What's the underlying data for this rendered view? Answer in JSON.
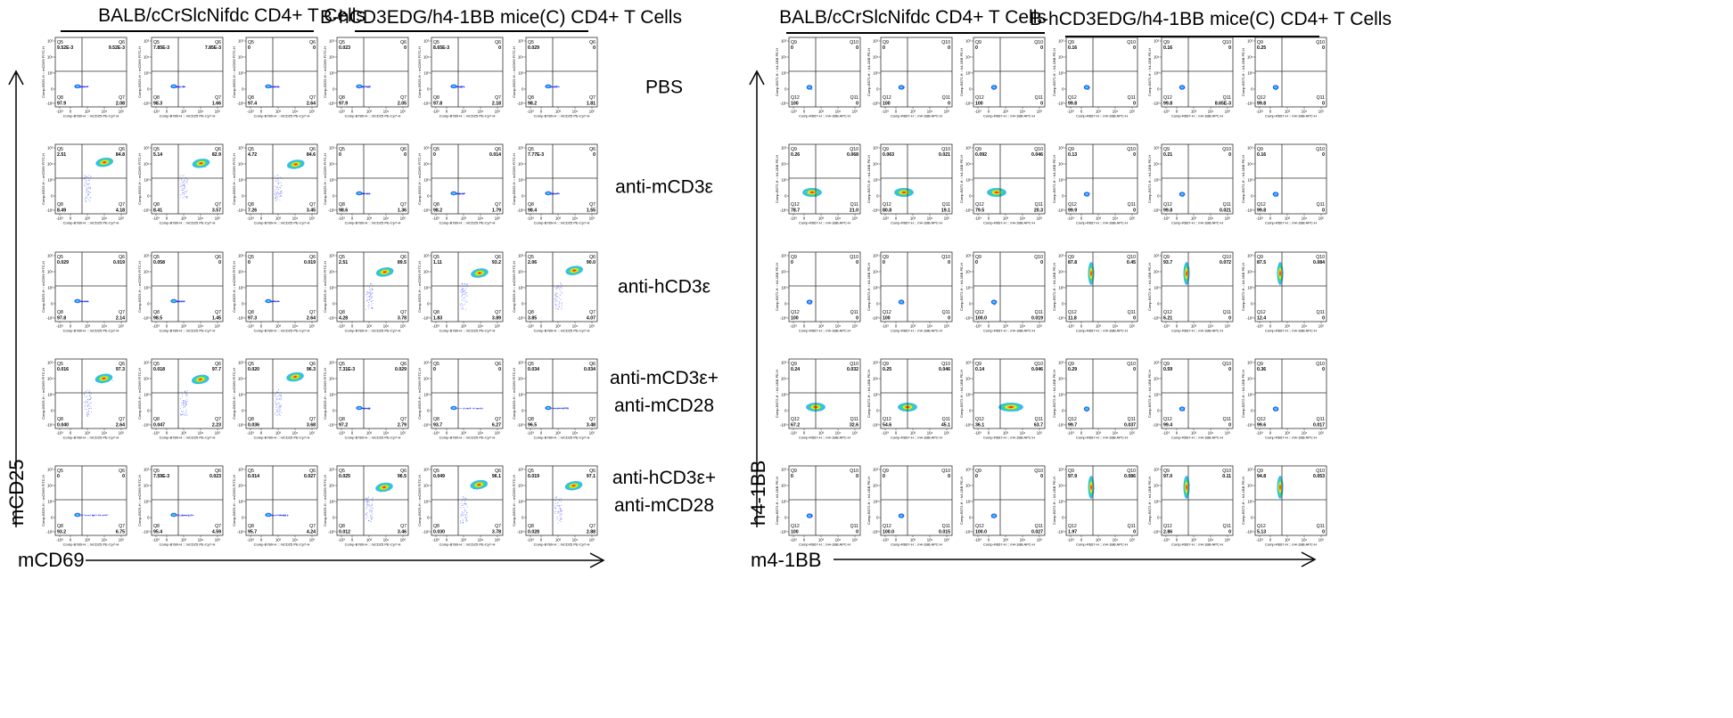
{
  "left_panel": {
    "group_headers": [
      "BALB/cCrSlcNifdc CD4+ T Cells",
      "B-hCD3EDG/h4-1BB mice(C) CD4+ T Cells"
    ],
    "y_axis_label": "mCD25",
    "x_axis_label": "mCD69",
    "plot_x_axis_text": "Comp-B780-H :: mCD25 PE-Cy7-H",
    "plot_y_axis_text": "Comp-B525-H :: mCD69 FITC-H",
    "x_tick_labels": [
      "-10³",
      "0",
      "10³",
      "10⁴",
      "10⁵"
    ],
    "y_tick_labels": [
      "10⁵",
      "10⁴",
      "10³",
      "0",
      "-10³"
    ],
    "gate_names": [
      "Q5",
      "Q6",
      "Q7",
      "Q8"
    ],
    "rows": [
      {
        "condition": "PBS",
        "plots": [
          {
            "tl": "9.52E-3",
            "tr": "9.52E-3",
            "br": "2.08",
            "bl": "97.9"
          },
          {
            "tl": "7.85E-3",
            "tr": "7.85E-3",
            "br": "1.66",
            "bl": "98.3"
          },
          {
            "tl": "0",
            "tr": "0",
            "br": "2.64",
            "bl": "97.4"
          },
          {
            "tl": "0.023",
            "tr": "0",
            "br": "2.05",
            "bl": "97.9"
          },
          {
            "tl": "8.65E-3",
            "tr": "0",
            "br": "2.18",
            "bl": "97.8"
          },
          {
            "tl": "0.029",
            "tr": "0",
            "br": "1.81",
            "bl": "98.2"
          }
        ]
      },
      {
        "condition": "anti-mCD3ε",
        "plots": [
          {
            "tl": "2.51",
            "tr": "84.8",
            "br": "4.18",
            "bl": "8.49"
          },
          {
            "tl": "5.14",
            "tr": "82.9",
            "br": "3.57",
            "bl": "8.41"
          },
          {
            "tl": "4.72",
            "tr": "84.6",
            "br": "3.45",
            "bl": "7.26"
          },
          {
            "tl": "0",
            "tr": "0",
            "br": "1.36",
            "bl": "98.6"
          },
          {
            "tl": "0",
            "tr": "0.014",
            "br": "1.79",
            "bl": "98.2"
          },
          {
            "tl": "7.77E-3",
            "tr": "0",
            "br": "1.55",
            "bl": "98.4"
          }
        ]
      },
      {
        "condition": "anti-hCD3ε",
        "plots": [
          {
            "tl": "0.029",
            "tr": "0.019",
            "br": "2.14",
            "bl": "97.8"
          },
          {
            "tl": "0.058",
            "tr": "0",
            "br": "1.45",
            "bl": "98.5"
          },
          {
            "tl": "0",
            "tr": "0.019",
            "br": "2.64",
            "bl": "97.3"
          },
          {
            "tl": "2.51",
            "tr": "89.5",
            "br": "3.78",
            "bl": "4.28"
          },
          {
            "tl": "1.11",
            "tr": "93.2",
            "br": "3.89",
            "bl": "1.83"
          },
          {
            "tl": "2.06",
            "tr": "90.0",
            "br": "4.07",
            "bl": "3.85"
          }
        ]
      },
      {
        "condition": "anti-mCD3ε+\nanti-mCD28",
        "plots": [
          {
            "tl": "0.016",
            "tr": "97.3",
            "br": "2.64",
            "bl": "0.040"
          },
          {
            "tl": "0.018",
            "tr": "97.7",
            "br": "2.23",
            "bl": "0.047"
          },
          {
            "tl": "0.020",
            "tr": "96.3",
            "br": "3.68",
            "bl": "0.036"
          },
          {
            "tl": "7.31E-3",
            "tr": "0.029",
            "br": "2.79",
            "bl": "97.2"
          },
          {
            "tl": "0",
            "tr": "0",
            "br": "6.27",
            "bl": "93.7"
          },
          {
            "tl": "0.034",
            "tr": "0.034",
            "br": "3.48",
            "bl": "96.5"
          }
        ]
      },
      {
        "condition": "anti-hCD3ε+\nanti-mCD28",
        "plots": [
          {
            "tl": "0",
            "tr": "0",
            "br": "6.75",
            "bl": "93.2"
          },
          {
            "tl": "7.59E-3",
            "tr": "0.023",
            "br": "4.59",
            "bl": "95.4"
          },
          {
            "tl": "0.014",
            "tr": "0.027",
            "br": "4.24",
            "bl": "95.7"
          },
          {
            "tl": "0.025",
            "tr": "96.5",
            "br": "3.46",
            "bl": "0.012"
          },
          {
            "tl": "0.049",
            "tr": "96.1",
            "br": "3.78",
            "bl": "0.030"
          },
          {
            "tl": "0.019",
            "tr": "97.1",
            "br": "2.88",
            "bl": "0.028"
          }
        ]
      }
    ]
  },
  "right_panel": {
    "group_headers": [
      "BALB/cCrSlcNifdc CD4+ T Cells",
      "B-hCD3EDG/h4-1BB mice(C) CD4+ T Cells"
    ],
    "y_axis_label": "h4-1BB",
    "x_axis_label": "m4-1BB",
    "plot_x_axis_text": "Comp-R667-H :: m4-1BB APC-H",
    "plot_y_axis_text": "Comp-B572-H :: h4-1BB PE-H",
    "x_tick_labels": [
      "-10³",
      "0",
      "10³",
      "10⁴",
      "10⁵"
    ],
    "y_tick_labels": [
      "10⁵",
      "10⁴",
      "10³",
      "0",
      "-10³"
    ],
    "gate_names": [
      "Q9",
      "Q10",
      "Q11",
      "Q12"
    ],
    "rows": [
      {
        "plots": [
          {
            "tl": "0",
            "tr": "0",
            "br": "0",
            "bl": "100"
          },
          {
            "tl": "0",
            "tr": "0",
            "br": "0",
            "bl": "100"
          },
          {
            "tl": "0",
            "tr": "0",
            "br": "0",
            "bl": "100"
          },
          {
            "tl": "0.16",
            "tr": "0",
            "br": "0",
            "bl": "99.8"
          },
          {
            "tl": "0.16",
            "tr": "0",
            "br": "8.65E-3",
            "bl": "99.8"
          },
          {
            "tl": "0.25",
            "tr": "0",
            "br": "0",
            "bl": "99.8"
          }
        ]
      },
      {
        "plots": [
          {
            "tl": "0.26",
            "tr": "0.068",
            "br": "21.0",
            "bl": "78.7"
          },
          {
            "tl": "0.063",
            "tr": "0.021",
            "br": "19.1",
            "bl": "80.8"
          },
          {
            "tl": "0.092",
            "tr": "0.046",
            "br": "20.3",
            "bl": "79.5"
          },
          {
            "tl": "0.13",
            "tr": "0",
            "br": "0",
            "bl": "99.9"
          },
          {
            "tl": "0.21",
            "tr": "0",
            "br": "0.021",
            "bl": "99.8"
          },
          {
            "tl": "0.16",
            "tr": "0",
            "br": "0",
            "bl": "99.8"
          }
        ]
      },
      {
        "plots": [
          {
            "tl": "0",
            "tr": "0",
            "br": "0",
            "bl": "100"
          },
          {
            "tl": "0",
            "tr": "0",
            "br": "0",
            "bl": "100"
          },
          {
            "tl": "0",
            "tr": "0",
            "br": "0.019",
            "bl": "100.0"
          },
          {
            "tl": "87.8",
            "tr": "0.45",
            "br": "0",
            "bl": "11.8"
          },
          {
            "tl": "93.7",
            "tr": "0.072",
            "br": "0",
            "bl": "6.21"
          },
          {
            "tl": "87.5",
            "tr": "0.084",
            "br": "0",
            "bl": "12.4"
          }
        ]
      },
      {
        "plots": [
          {
            "tl": "0.24",
            "tr": "0.032",
            "br": "32.6",
            "bl": "67.2"
          },
          {
            "tl": "0.25",
            "tr": "0.046",
            "br": "45.1",
            "bl": "54.6"
          },
          {
            "tl": "0.14",
            "tr": "0.046",
            "br": "63.7",
            "bl": "36.1"
          },
          {
            "tl": "0.29",
            "tr": "0",
            "br": "0.037",
            "bl": "99.7"
          },
          {
            "tl": "0.59",
            "tr": "0",
            "br": "0",
            "bl": "99.4"
          },
          {
            "tl": "0.36",
            "tr": "0",
            "br": "0.017",
            "bl": "99.6"
          }
        ]
      },
      {
        "plots": [
          {
            "tl": "0",
            "tr": "0",
            "br": "0",
            "bl": "100"
          },
          {
            "tl": "0",
            "tr": "0",
            "br": "0.015",
            "bl": "100.0"
          },
          {
            "tl": "0",
            "tr": "0",
            "br": "0.027",
            "bl": "100.0"
          },
          {
            "tl": "97.9",
            "tr": "0.086",
            "br": "0",
            "bl": "1.97"
          },
          {
            "tl": "97.0",
            "tr": "0.11",
            "br": "0",
            "bl": "2.86"
          },
          {
            "tl": "94.8",
            "tr": "0.053",
            "br": "0",
            "bl": "5.13"
          }
        ]
      }
    ]
  }
}
